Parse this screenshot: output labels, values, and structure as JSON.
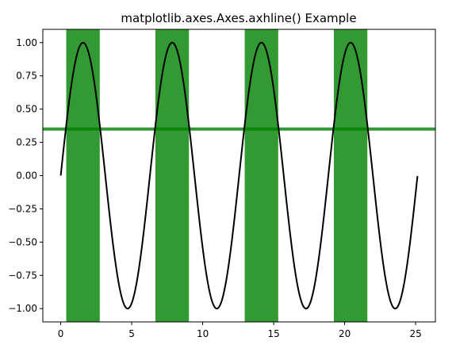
{
  "chart_data": {
    "type": "line",
    "title": "matplotlib.axes.Axes.axhline() Example",
    "xlabel": "",
    "ylabel": "",
    "xlim": [
      -1.26,
      26.39
    ],
    "ylim": [
      -1.1,
      1.1
    ],
    "x_ticks": [
      0,
      5,
      10,
      15,
      20,
      25
    ],
    "y_ticks": [
      -1.0,
      -0.75,
      -0.5,
      -0.25,
      0.0,
      0.25,
      0.5,
      0.75,
      1.0
    ],
    "x_tick_labels": [
      "0",
      "5",
      "10",
      "15",
      "20",
      "25"
    ],
    "y_tick_labels": [
      "−1.00",
      "−0.75",
      "−0.50",
      "−0.25",
      "0.00",
      "0.25",
      "0.50",
      "0.75",
      "1.00"
    ],
    "grid": false,
    "series": [
      {
        "function": "sin(x)",
        "x_range": [
          0,
          25.13
        ],
        "color": "#000000"
      }
    ],
    "vertical_spans": [
      {
        "x0": 0.39,
        "x1": 2.75
      },
      {
        "x0": 6.67,
        "x1": 9.03
      },
      {
        "x0": 12.96,
        "x1": 15.32
      },
      {
        "x0": 19.24,
        "x1": 21.6
      }
    ],
    "span_color": "#008000",
    "span_alpha": 0.8,
    "horizontal_line": {
      "y": 0.35,
      "color": "#008000",
      "alpha": 0.8
    }
  }
}
